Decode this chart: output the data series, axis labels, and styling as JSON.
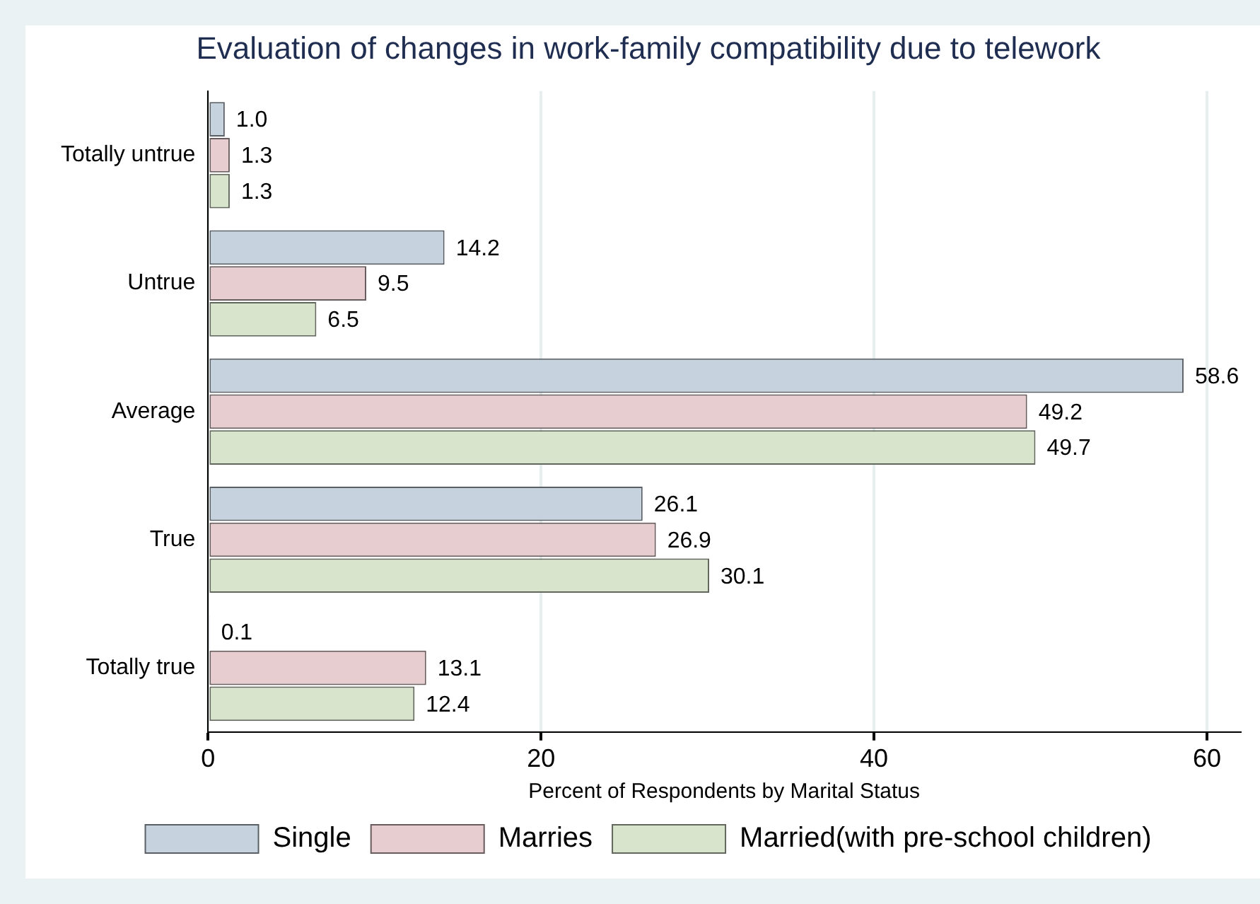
{
  "chart_data": {
    "type": "bar",
    "orientation": "horizontal",
    "title": "Evaluation of changes in work-family compatibility due to telework",
    "xlabel": "Percent of Respondents by Marital Status",
    "categories": [
      "Totally untrue",
      "Untrue",
      "Average",
      "True",
      "Totally true"
    ],
    "series": [
      {
        "name": "Single",
        "color": "#c6d3df",
        "values": [
          1.0,
          14.2,
          58.6,
          26.1,
          0.1
        ],
        "value_labels": [
          "1.0",
          "14.2",
          "58.6",
          "26.1",
          "0.1"
        ]
      },
      {
        "name": "Marries",
        "color": "#e8cdd0",
        "values": [
          1.3,
          9.5,
          49.2,
          26.9,
          13.1
        ],
        "value_labels": [
          "1.3",
          "9.5",
          "49.2",
          "26.9",
          "13.1"
        ]
      },
      {
        "name": "Married(with pre-school children)",
        "color": "#d8e4cc",
        "values": [
          1.3,
          6.5,
          49.7,
          30.1,
          12.4
        ],
        "value_labels": [
          "1.3",
          "6.5",
          "49.7",
          "30.1",
          "12.4"
        ]
      }
    ],
    "xlim": [
      0,
      62
    ],
    "xticks": [
      0,
      20,
      40,
      60
    ],
    "grid": "x",
    "legend": "bottom"
  }
}
